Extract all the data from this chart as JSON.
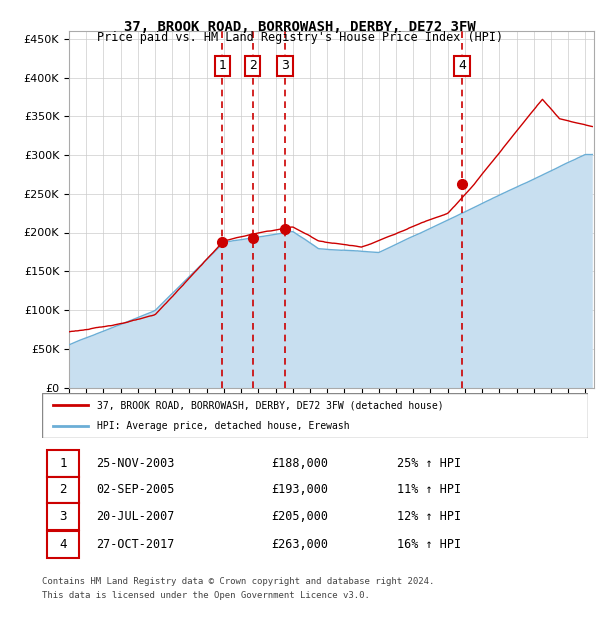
{
  "title": "37, BROOK ROAD, BORROWASH, DERBY, DE72 3FW",
  "subtitle": "Price paid vs. HM Land Registry's House Price Index (HPI)",
  "legend_line1": "37, BROOK ROAD, BORROWASH, DERBY, DE72 3FW (detached house)",
  "legend_line2": "HPI: Average price, detached house, Erewash",
  "footer_line1": "Contains HM Land Registry data © Crown copyright and database right 2024.",
  "footer_line2": "This data is licensed under the Open Government Licence v3.0.",
  "transactions": [
    {
      "num": 1,
      "date": "25-NOV-2003",
      "price": 188000,
      "pct": "25%",
      "dir": "↑",
      "x_year": 2003.9
    },
    {
      "num": 2,
      "date": "02-SEP-2005",
      "price": 193000,
      "pct": "11%",
      "dir": "↑",
      "x_year": 2005.67
    },
    {
      "num": 3,
      "date": "20-JUL-2007",
      "price": 205000,
      "pct": "12%",
      "dir": "↑",
      "x_year": 2007.55
    },
    {
      "num": 4,
      "date": "27-OCT-2017",
      "price": 263000,
      "pct": "16%",
      "dir": "↑",
      "x_year": 2017.83
    }
  ],
  "hpi_color": "#6baed6",
  "hpi_fill_color": "#c8dff0",
  "price_color": "#cc0000",
  "marker_color": "#cc0000",
  "vline_color": "#cc0000",
  "label_box_color": "#cc0000",
  "background_color": "#ffffff",
  "grid_color": "#cccccc",
  "ylim": [
    0,
    460000
  ],
  "xlim_start": 1995.0,
  "xlim_end": 2025.5,
  "yticks": [
    0,
    50000,
    100000,
    150000,
    200000,
    250000,
    300000,
    350000,
    400000,
    450000
  ],
  "xticks": [
    1995,
    1996,
    1997,
    1998,
    1999,
    2000,
    2001,
    2002,
    2003,
    2004,
    2005,
    2006,
    2007,
    2008,
    2009,
    2010,
    2011,
    2012,
    2013,
    2014,
    2015,
    2016,
    2017,
    2018,
    2019,
    2020,
    2021,
    2022,
    2023,
    2024,
    2025
  ]
}
